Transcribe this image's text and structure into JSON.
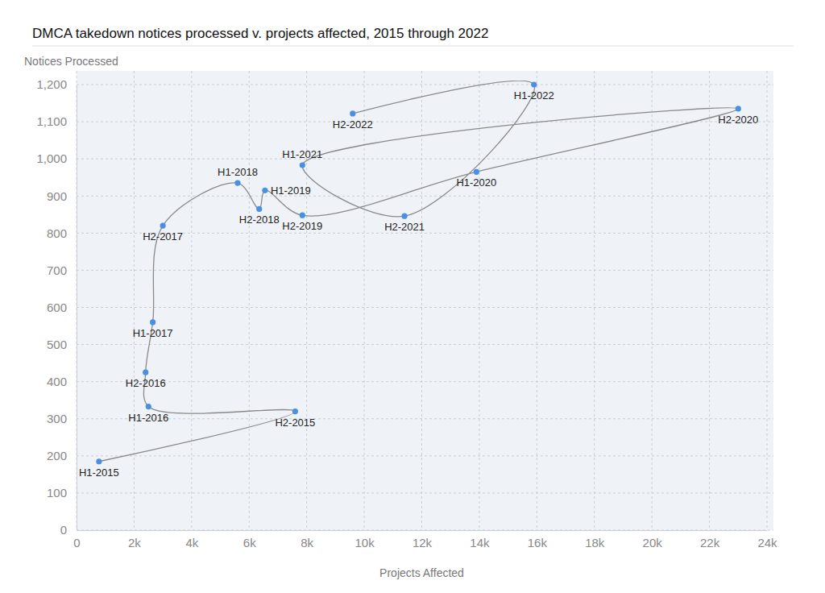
{
  "chart_data": {
    "type": "scatter",
    "title": "DMCA takedown notices processed v. projects affected, 2015 through 2022",
    "x_label": "Projects Affected",
    "y_label": "Notices Processed",
    "labels": [
      "H1-2015",
      "H2-2015",
      "H1-2016",
      "H2-2016",
      "H1-2017",
      "H2-2017",
      "H1-2018",
      "H2-2018",
      "H1-2019",
      "H2-2019",
      "H1-2020",
      "H2-2020",
      "H1-2021",
      "H2-2021",
      "H1-2022",
      "H2-2022"
    ],
    "x": [
      780,
      7600,
      2500,
      2400,
      2650,
      3000,
      5600,
      6350,
      6550,
      7850,
      13900,
      23000,
      7850,
      11400,
      15900,
      9600
    ],
    "values": [
      185,
      320,
      333,
      425,
      560,
      820,
      935,
      865,
      915,
      848,
      965,
      1135,
      983,
      846,
      1200,
      1122
    ],
    "color": "#4a90e2",
    "marker": "circle",
    "line_style": "solid",
    "xlim": [
      0,
      24000
    ],
    "ylim": [
      0,
      1200
    ],
    "xticks": [
      0,
      {
        "value": 2000,
        "label": "2k"
      },
      {
        "value": 4000,
        "label": "4k"
      },
      {
        "value": 6000,
        "label": "6k"
      },
      {
        "value": 8000,
        "label": "8k"
      },
      {
        "value": 10000,
        "label": "10k"
      },
      {
        "value": 12000,
        "label": "12k"
      },
      {
        "value": 14000,
        "label": "14k"
      },
      {
        "value": 16000,
        "label": "16k"
      },
      {
        "value": 18000,
        "label": "18k"
      },
      {
        "value": 20000,
        "label": "20k"
      },
      {
        "value": 22000,
        "label": "22k"
      },
      {
        "value": 24000,
        "label": "24k"
      }
    ],
    "yticks": [
      0,
      100,
      200,
      300,
      400,
      500,
      600,
      700,
      800,
      900,
      {
        "value": 1000,
        "label": "1,000"
      },
      {
        "value": 1100,
        "label": "1,100"
      },
      {
        "value": 1200,
        "label": "1,200"
      }
    ],
    "grid": true
  }
}
